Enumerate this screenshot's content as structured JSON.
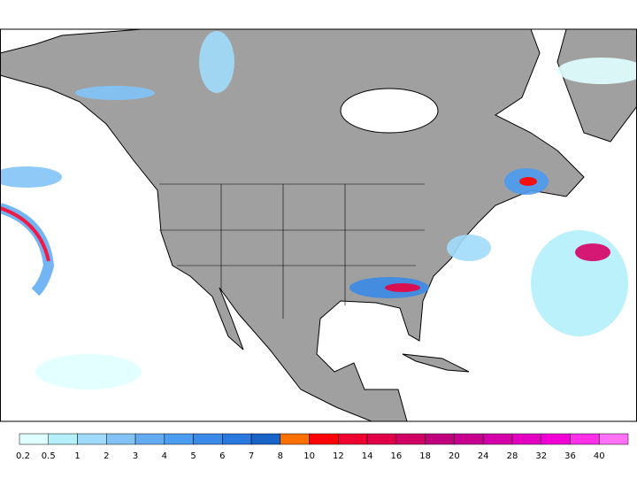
{
  "legend": {
    "levels": [
      0.2,
      0.5,
      1,
      2,
      3,
      4,
      5,
      6,
      7,
      8,
      10,
      12,
      14,
      16,
      18,
      20,
      24,
      28,
      32,
      36,
      40
    ],
    "colors": [
      "#e0ffff",
      "#b4f0fa",
      "#a0dcfa",
      "#82c4f8",
      "#64acf2",
      "#4c9cf0",
      "#3a8ae8",
      "#2a78e0",
      "#1862c8",
      "#ff7000",
      "#ff0000",
      "#f00030",
      "#e00048",
      "#d00064",
      "#c0007c",
      "#c80090",
      "#d400a8",
      "#e400c0",
      "#f000d4",
      "#ff30e8",
      "#ff70f8"
    ]
  }
}
